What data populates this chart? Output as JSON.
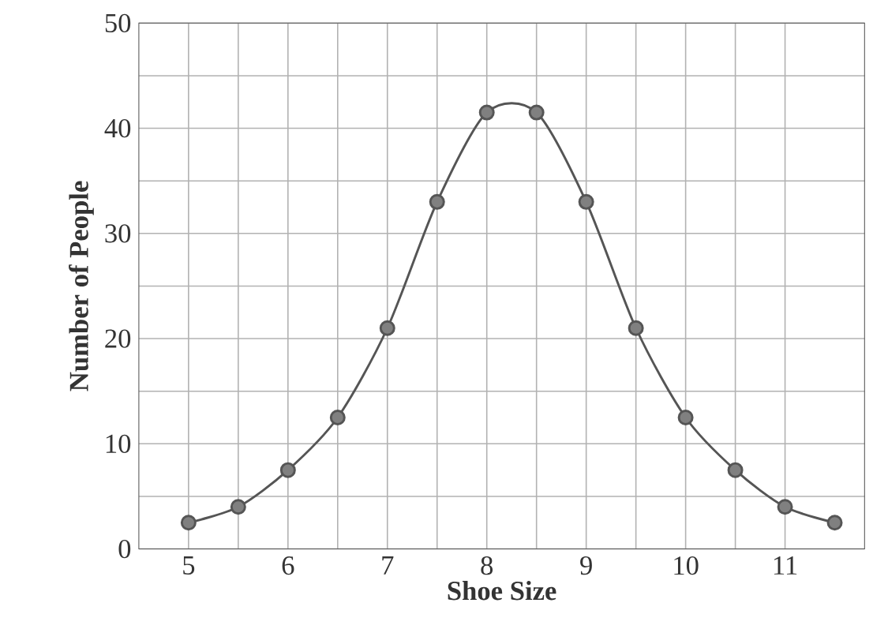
{
  "chart_data": {
    "type": "line",
    "xlabel": "Shoe Size",
    "ylabel": "Number of People",
    "x": [
      5,
      5.5,
      6,
      6.5,
      7,
      7.5,
      8,
      8.5,
      9,
      9.5,
      10,
      10.5,
      11,
      11.5
    ],
    "values": [
      2.5,
      4,
      7.5,
      12.5,
      21,
      33,
      41.5,
      41.5,
      33,
      21,
      12.5,
      7.5,
      4,
      2.5
    ],
    "color": "#555555",
    "marker": "circle",
    "line_style": "solid",
    "grid": true,
    "xlim": [
      4.5,
      11.8
    ],
    "ylim": [
      0,
      50
    ],
    "xticks": [
      5,
      6,
      7,
      8,
      9,
      10,
      11
    ],
    "yticks": [
      0,
      10,
      20,
      30,
      40,
      50
    ]
  }
}
